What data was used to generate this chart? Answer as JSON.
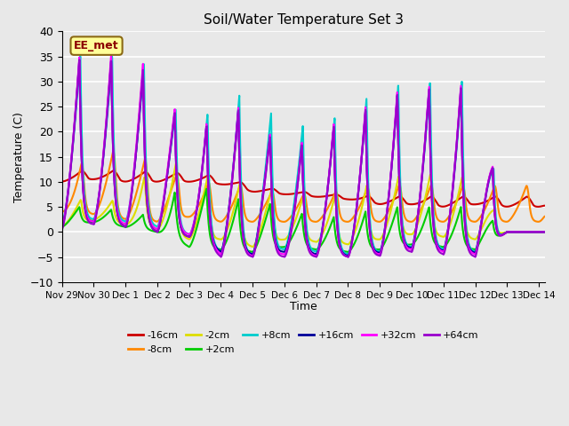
{
  "title": "Soil/Water Temperature Set 3",
  "xlabel": "Time",
  "ylabel": "Temperature (C)",
  "ylim": [
    -10,
    40
  ],
  "annotation": "EE_met",
  "bg_color": "#e8e8e8",
  "series": [
    {
      "label": "-16cm",
      "color": "#cc0000",
      "lw": 1.5
    },
    {
      "label": "-8cm",
      "color": "#ff8800",
      "lw": 1.5
    },
    {
      "label": "-2cm",
      "color": "#dddd00",
      "lw": 1.5
    },
    {
      "label": "+2cm",
      "color": "#00cc00",
      "lw": 1.5
    },
    {
      "label": "+8cm",
      "color": "#00cccc",
      "lw": 1.5
    },
    {
      "label": "+16cm",
      "color": "#000099",
      "lw": 1.5
    },
    {
      "label": "+32cm",
      "color": "#ff00ff",
      "lw": 1.5
    },
    {
      "label": "+64cm",
      "color": "#9900cc",
      "lw": 1.5
    }
  ],
  "xtick_labels": [
    "Nov 29",
    "Nov 30",
    "Dec 1",
    "Dec 2",
    "Dec 3",
    "Dec 4",
    "Dec 5",
    "Dec 6",
    "Dec 7",
    "Dec 8",
    "Dec 9",
    "Dec 10",
    "Dec 11",
    "Dec 12",
    "Dec 13",
    "Dec 14"
  ],
  "grid_color": "#ffffff",
  "yticks": [
    -10,
    -5,
    0,
    5,
    10,
    15,
    20,
    25,
    30,
    35,
    40
  ]
}
